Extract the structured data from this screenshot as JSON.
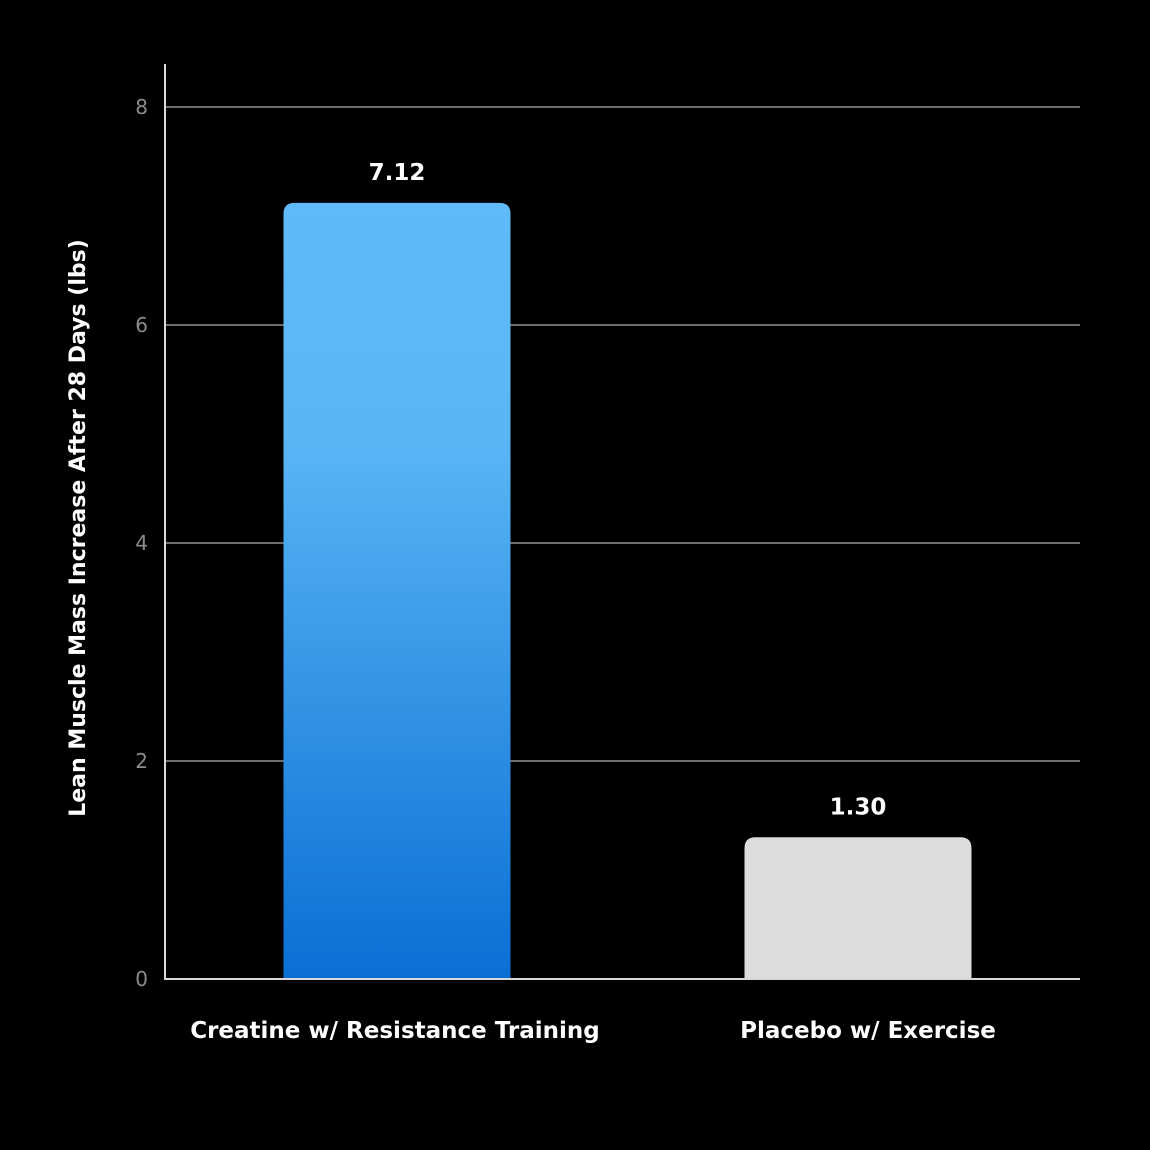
{
  "chart_data": {
    "type": "bar",
    "title": "",
    "xlabel": "",
    "ylabel": "Lean Muscle Mass Increase After 28 Days (lbs)",
    "categories": [
      "Creatine w/ Resistance Training",
      "Placebo w/ Exercise"
    ],
    "values": [
      7.12,
      1.3
    ],
    "value_labels": [
      "7.12",
      "1.30"
    ],
    "ylim": [
      0,
      8
    ],
    "yticks": [
      0,
      2,
      4,
      6,
      8
    ],
    "ytick_labels": [
      "0",
      "2",
      "4",
      "6",
      "8"
    ],
    "grid": true,
    "legend": "none",
    "colors": {
      "background": "#000000",
      "bar_creatine_top": "#5fbaf7",
      "bar_creatine_bottom": "#0a6fd4",
      "bar_placebo": "#dcdcdc",
      "gridline": "#6e6e6e",
      "axis": "#d8d8d8",
      "tick_text": "#8c8c8c",
      "label_text": "#ffffff"
    }
  }
}
